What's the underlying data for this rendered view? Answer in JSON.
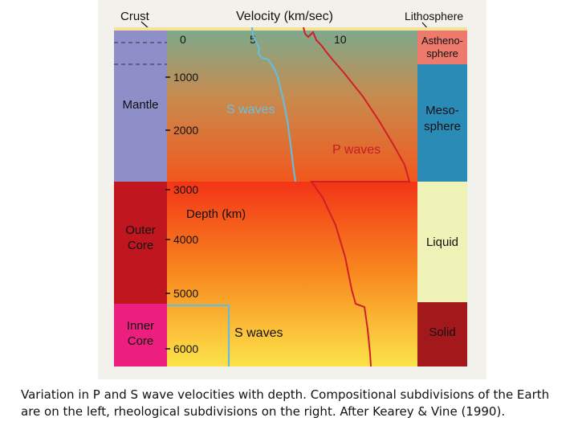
{
  "header": {
    "crust": "Crust",
    "velocity": "Velocity (km/sec)",
    "lithosphere": "Lithosphere"
  },
  "velocity_ticks": [
    "0",
    "5",
    "10"
  ],
  "depth_ticks": [
    "1000",
    "2000",
    "3000",
    "4000",
    "5000",
    "6000"
  ],
  "depth_label": "Depth (km)",
  "compositional_layers": [
    {
      "name": "Mantle",
      "color": "#8e8ec9"
    },
    {
      "name": "Outer Core",
      "color": "#c0161f"
    },
    {
      "name": "Inner Core",
      "color": "#ec1f7e"
    }
  ],
  "rheological_layers": [
    {
      "name": "Astheno-sphere",
      "color": "#ee7a6d"
    },
    {
      "name": "Meso-sphere",
      "color": "#2b8bb7"
    },
    {
      "name": "Liquid",
      "color": "#eef2b7"
    },
    {
      "name": "Solid",
      "color": "#a3181b"
    }
  ],
  "curves": {
    "s_label_mantle": "S waves",
    "p_label": "P waves",
    "s_label_core": "S waves"
  },
  "colors": {
    "s_wave": "#67bcd9",
    "p_wave": "#cf2027",
    "crust_band": "#f5e39a"
  },
  "caption": "Variation in P and S wave velocities with depth. Compositional subdivisions of the Earth are on the left, rheological subdivisions on the right. After Kearey & Vine (1990)."
}
